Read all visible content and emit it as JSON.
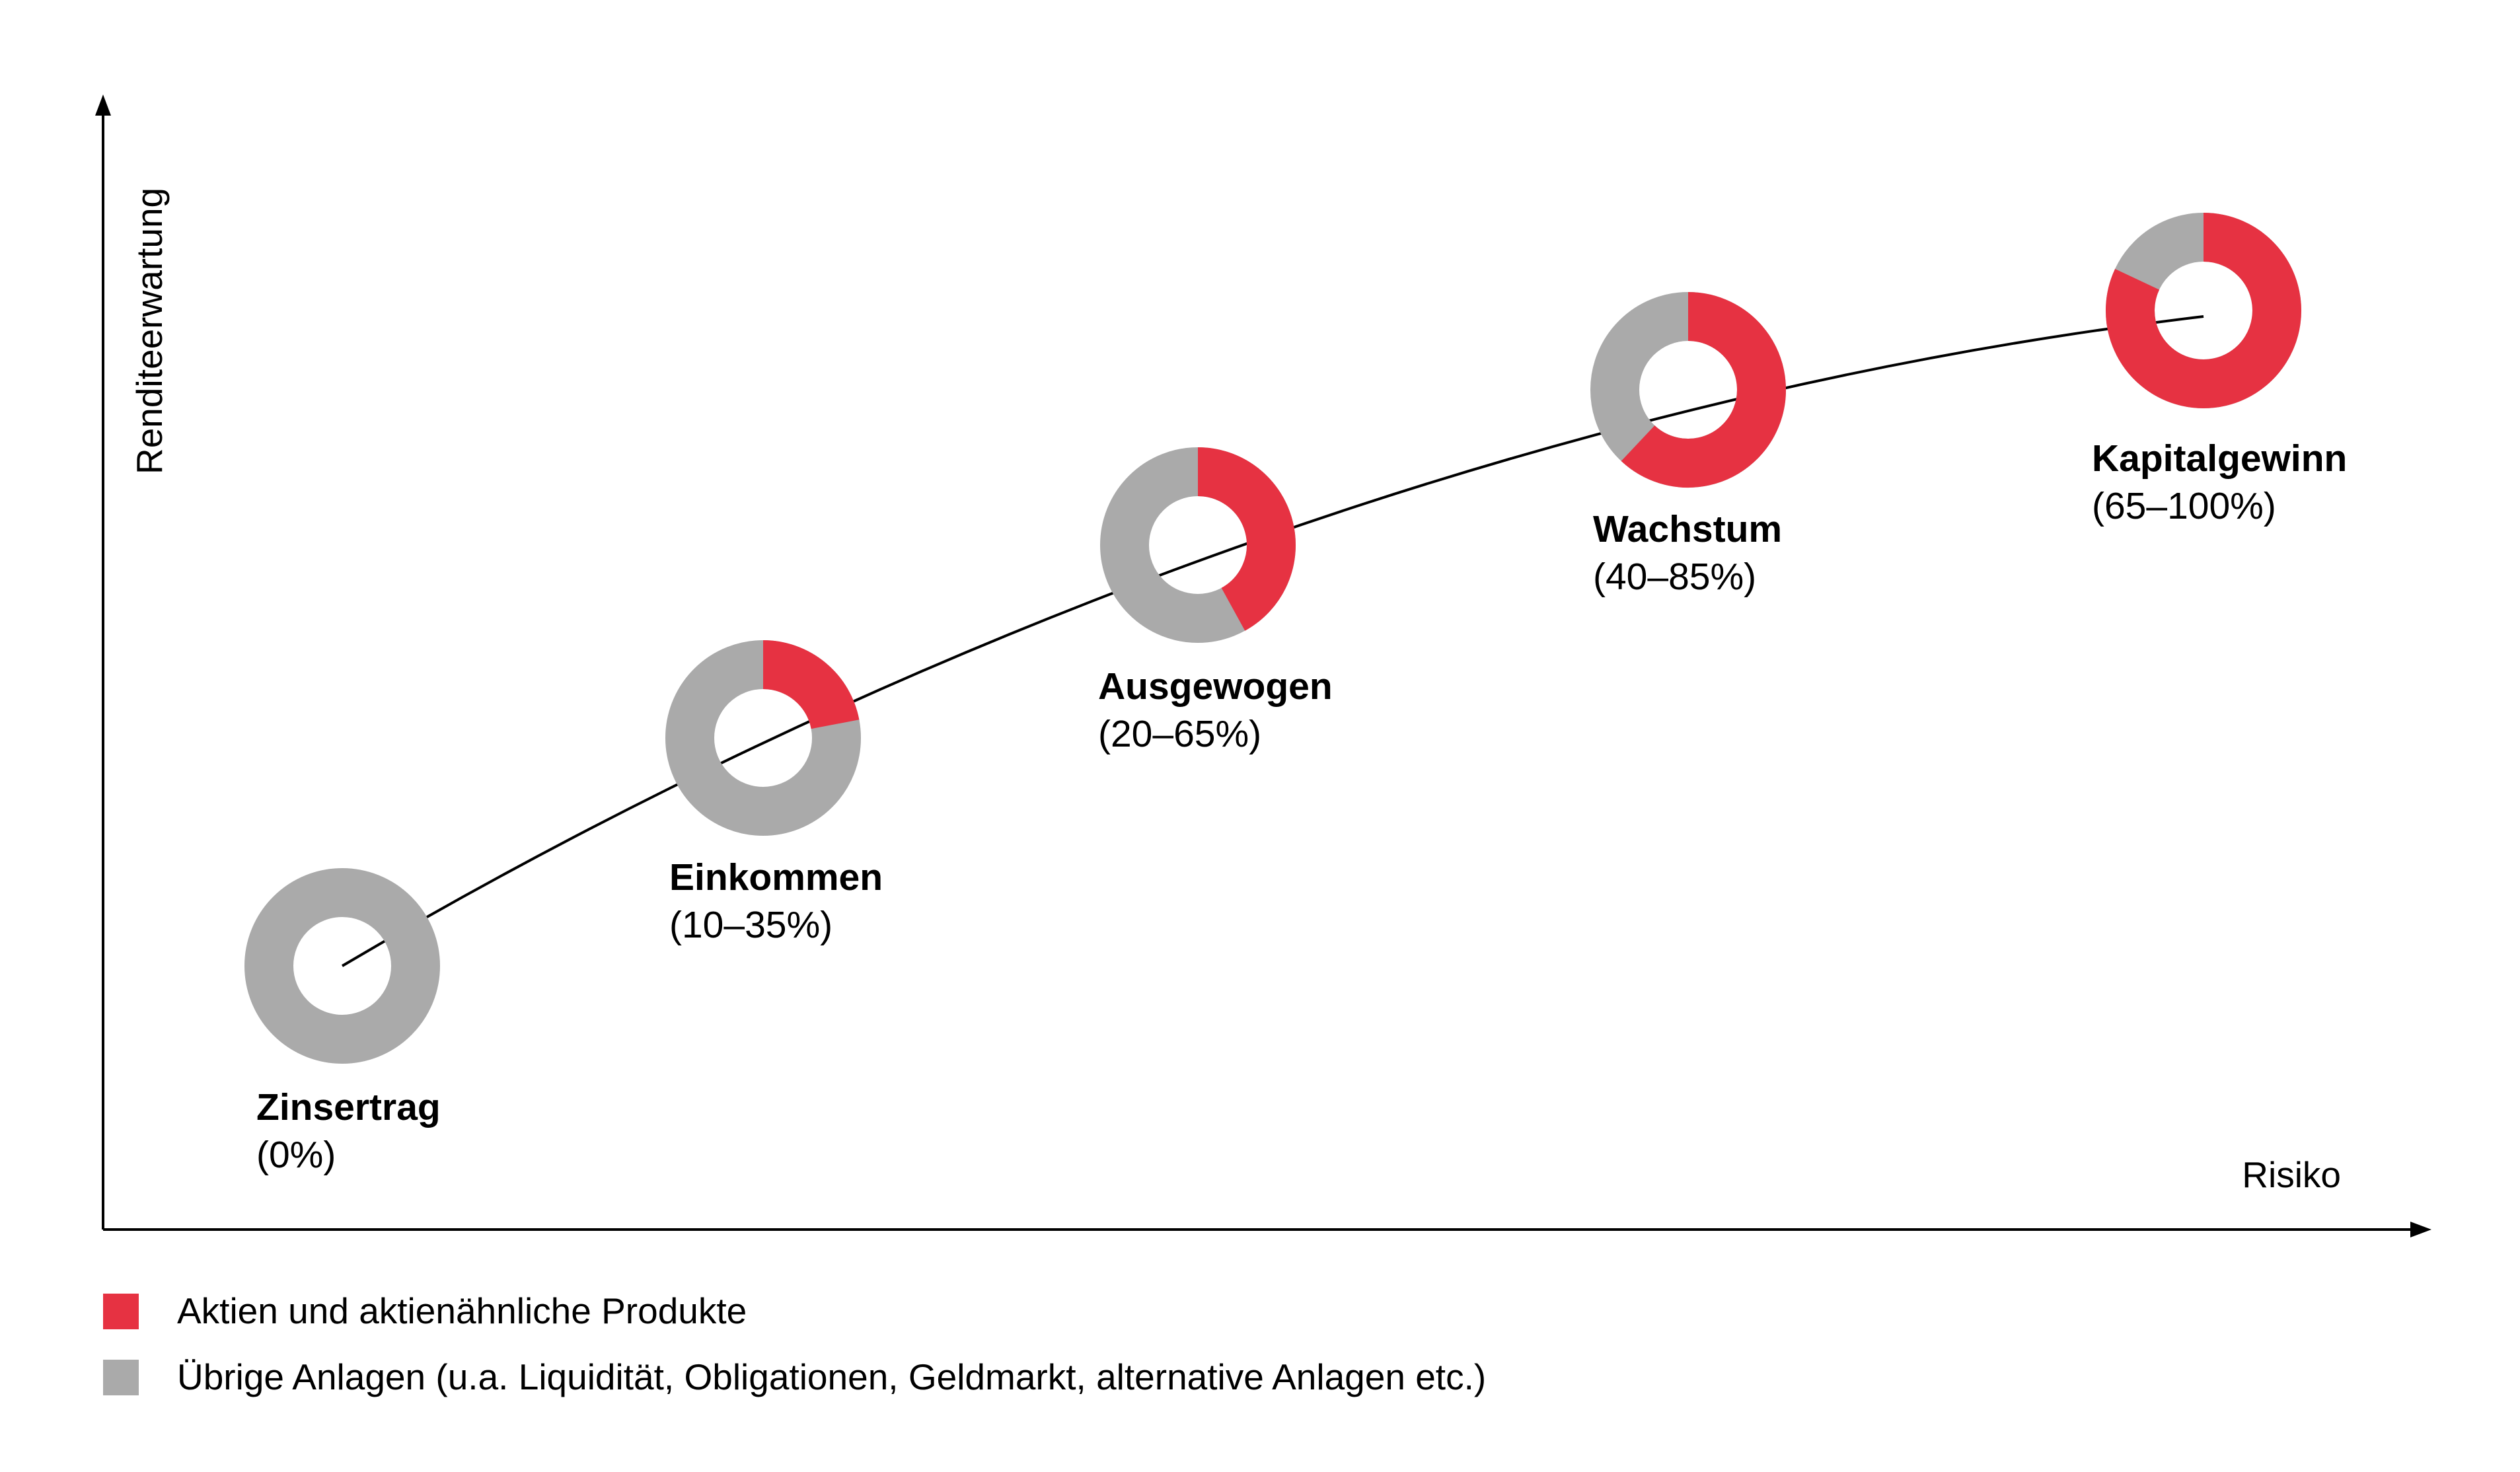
{
  "chart_data": {
    "type": "donut-scatter",
    "title": "",
    "xlabel": "Risiko",
    "ylabel": "Renditeerwartung",
    "strategies": [
      {
        "name": "Zinsertrag",
        "range": "(0%)",
        "equity_share": 0
      },
      {
        "name": "Einkommen",
        "range": "(10–35%)",
        "equity_share": 22
      },
      {
        "name": "Ausgewogen",
        "range": "(20–65%)",
        "equity_share": 42
      },
      {
        "name": "Wachstum",
        "range": "(40–85%)",
        "equity_share": 62
      },
      {
        "name": "Kapitalgewinn",
        "range": "(65–100%)",
        "equity_share": 82
      }
    ],
    "legend": [
      {
        "label": "Aktien und aktienähnliche Produkte",
        "color": "#e63242"
      },
      {
        "label": "Übrige Anlagen (u.a. Liquidität, Obligationen, Geldmarkt, alternative Anlagen etc.)",
        "color": "#aaaaaa"
      }
    ],
    "colors": {
      "equity": "#e63242",
      "other": "#aaaaaa",
      "axis": "#000000"
    }
  }
}
